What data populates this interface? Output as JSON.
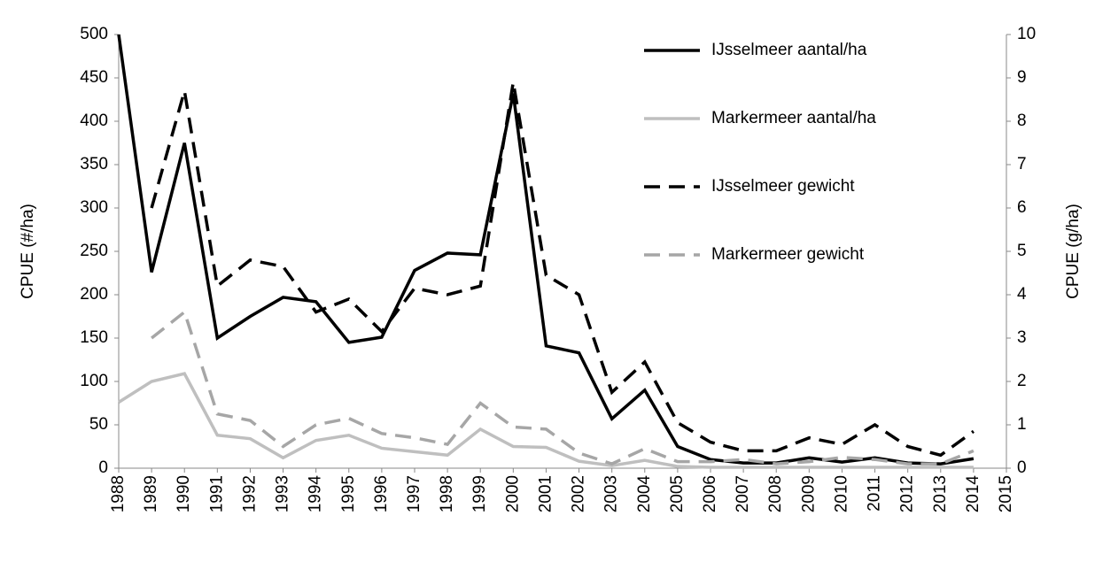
{
  "chart_data": {
    "type": "line",
    "x": [
      1988,
      1989,
      1990,
      1991,
      1992,
      1993,
      1994,
      1995,
      1996,
      1997,
      1998,
      1999,
      2000,
      2001,
      2002,
      2003,
      2004,
      2005,
      2006,
      2007,
      2008,
      2009,
      2010,
      2011,
      2012,
      2013,
      2014
    ],
    "xlim": [
      1988,
      2015
    ],
    "xticks": [
      1988,
      1989,
      1990,
      1991,
      1992,
      1993,
      1994,
      1995,
      1996,
      1997,
      1998,
      1999,
      2000,
      2001,
      2002,
      2003,
      2004,
      2005,
      2006,
      2007,
      2008,
      2009,
      2010,
      2011,
      2012,
      2013,
      2014,
      2015
    ],
    "ylabel": "CPUE (#/ha)",
    "ylim": [
      0,
      500
    ],
    "yticks": [
      0,
      50,
      100,
      150,
      200,
      250,
      300,
      350,
      400,
      450,
      500
    ],
    "y2label": "CPUE (g/ha)",
    "y2lim": [
      0,
      10
    ],
    "y2ticks": [
      0,
      1,
      2,
      3,
      4,
      5,
      6,
      7,
      8,
      9,
      10
    ],
    "legend": "upper right",
    "series": [
      {
        "name": "IJsselmeer aantal/ha",
        "color": "#000000",
        "dash": false,
        "values": [
          500,
          226,
          375,
          150,
          175,
          197,
          192,
          145,
          151,
          228,
          248,
          246,
          432,
          141,
          133,
          57,
          90,
          25,
          10,
          6,
          6,
          12,
          7,
          12,
          6,
          5,
          11
        ]
      },
      {
        "name": "Markermeer aantal/ha",
        "color": "#bfbfbf",
        "dash": false,
        "values": [
          76,
          100,
          109,
          38,
          34,
          12,
          32,
          38,
          23,
          19,
          15,
          45,
          25,
          24,
          8,
          3,
          9,
          2,
          1,
          1,
          1,
          1,
          1,
          1,
          1,
          1,
          1
        ]
      },
      {
        "name": "IJsselmeer gewicht",
        "color": "#000000",
        "dash": true,
        "axis": "y2",
        "values": [
          null,
          6.0,
          8.7,
          4.2,
          4.8,
          4.65,
          3.6,
          3.9,
          3.15,
          4.15,
          4.0,
          4.2,
          8.9,
          4.45,
          4.0,
          1.75,
          2.45,
          1.05,
          0.6,
          0.4,
          0.4,
          0.7,
          0.55,
          1.0,
          0.5,
          0.3,
          0.85
        ]
      },
      {
        "name": "Markermeer gewicht",
        "color": "#a6a6a6",
        "dash": true,
        "axis": "y2",
        "values": [
          null,
          3.0,
          3.6,
          1.25,
          1.1,
          0.5,
          1.0,
          1.15,
          0.8,
          0.7,
          0.55,
          1.5,
          0.95,
          0.9,
          0.35,
          0.1,
          0.45,
          0.15,
          0.15,
          0.2,
          0.1,
          0.15,
          0.25,
          0.2,
          0.1,
          0.1,
          0.4
        ]
      }
    ]
  }
}
